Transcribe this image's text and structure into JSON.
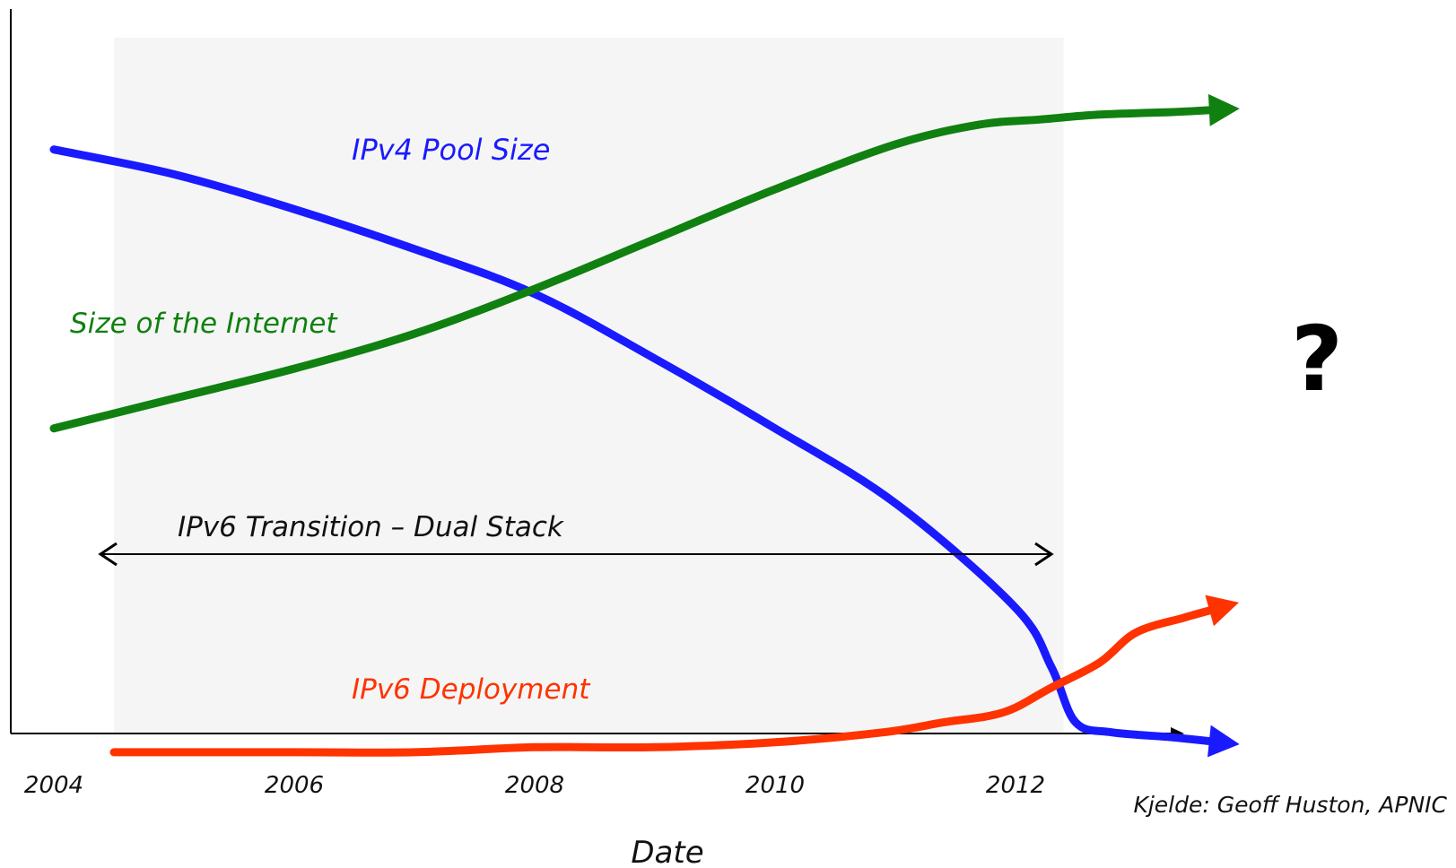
{
  "chart_data": {
    "type": "line",
    "xlabel": "Date",
    "x_ticks": [
      "2004",
      "2006",
      "2008",
      "2010",
      "2012"
    ],
    "xlim": [
      2004,
      2014
    ],
    "series": [
      {
        "name": "IPv4 Pool Size",
        "color": "#1a1aff",
        "x": [
          2004,
          2005,
          2006,
          2007,
          2008,
          2009,
          2010,
          2011,
          2012,
          2012.3,
          2012.5,
          2012.8,
          2013.3,
          2013.7
        ],
        "y": [
          0.88,
          0.83,
          0.76,
          0.68,
          0.59,
          0.46,
          0.32,
          0.17,
          -0.04,
          -0.16,
          -0.27,
          -0.29,
          -0.3,
          -0.31
        ]
      },
      {
        "name": "Size of the Internet",
        "color": "#108010",
        "x": [
          2004,
          2005,
          2006,
          2007,
          2008,
          2009,
          2010,
          2011,
          2011.7,
          2012.2,
          2012.7,
          2013.3,
          2013.7
        ],
        "y": [
          0.32,
          0.38,
          0.44,
          0.51,
          0.6,
          0.7,
          0.8,
          0.89,
          0.93,
          0.94,
          0.95,
          0.955,
          0.96
        ]
      },
      {
        "name": "IPv6 Deployment",
        "color": "#ff3300",
        "x": [
          2004.5,
          2006,
          2007,
          2008,
          2009,
          2010,
          2010.9,
          2011.4,
          2011.9,
          2012.3,
          2012.7,
          2013.0,
          2013.4,
          2013.7
        ],
        "y": [
          -0.33,
          -0.33,
          -0.33,
          -0.32,
          -0.32,
          -0.31,
          -0.29,
          -0.27,
          -0.25,
          -0.2,
          -0.15,
          -0.09,
          -0.06,
          -0.04
        ]
      }
    ],
    "annotations": {
      "shaded_region": [
        "2004.5",
        "2012.4"
      ],
      "transition_label": "IPv6 Transition – Dual Stack",
      "question_mark": "?",
      "source": "Kjelde: Geoff Huston, APNIC"
    }
  }
}
